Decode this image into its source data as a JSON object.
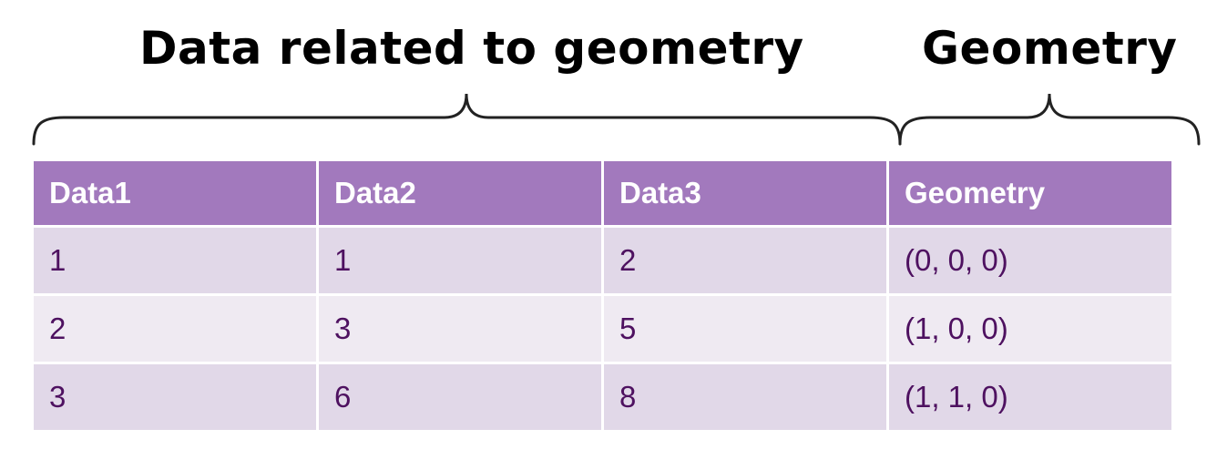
{
  "labels": {
    "data_group": "Data related to geometry",
    "geometry_group": "Geometry"
  },
  "table": {
    "headers": [
      "Data1",
      "Data2",
      "Data3",
      "Geometry"
    ],
    "rows": [
      [
        "1",
        "1",
        "2",
        "(0, 0, 0)"
      ],
      [
        "2",
        "3",
        "5",
        "(1, 0, 0)"
      ],
      [
        "3",
        "6",
        "8",
        "(1, 1, 0)"
      ]
    ]
  },
  "colors": {
    "header_bg": "#a279bd",
    "row_odd_bg": "#e1d8e8",
    "row_even_bg": "#efeaf2",
    "cell_text": "#4e1160"
  }
}
